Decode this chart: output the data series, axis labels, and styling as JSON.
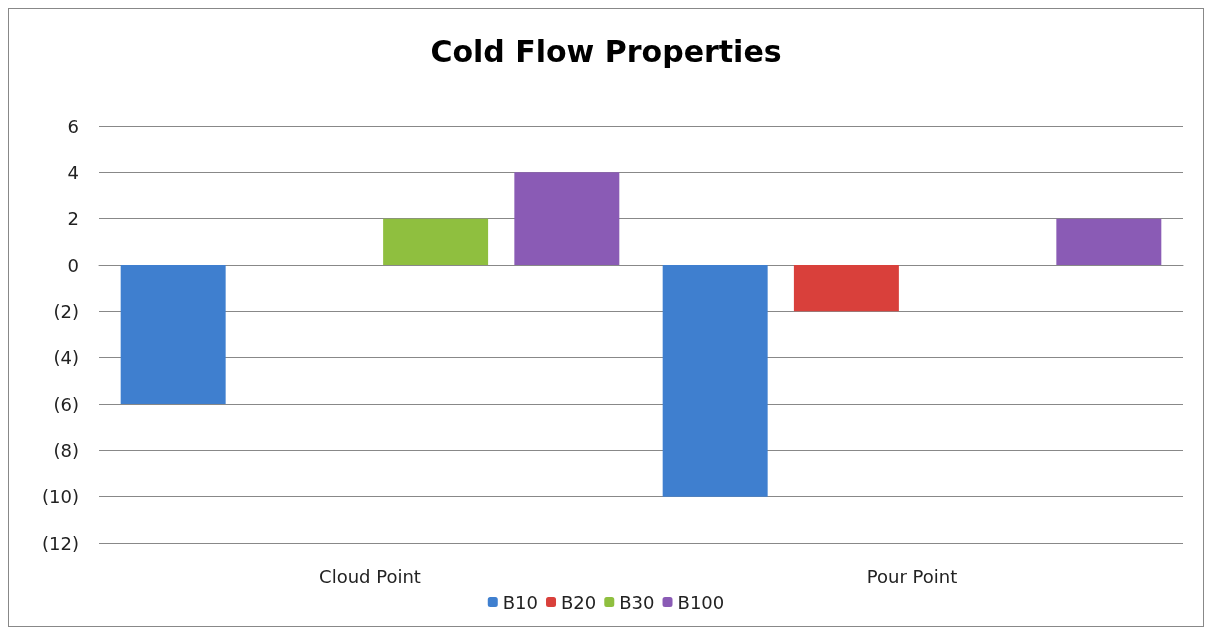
{
  "chart_data": {
    "type": "bar",
    "title": "Cold Flow Properties",
    "categories": [
      "Cloud Point",
      "Pour Point"
    ],
    "series": [
      {
        "name": "B10",
        "color": "#3f7fcf",
        "values": [
          -6,
          -10
        ]
      },
      {
        "name": "B20",
        "color": "#d9403b",
        "values": [
          0,
          -2
        ]
      },
      {
        "name": "B30",
        "color": "#8fbf3f",
        "values": [
          2,
          0
        ]
      },
      {
        "name": "B100",
        "color": "#8a5bb5",
        "values": [
          4,
          2
        ]
      }
    ],
    "ylim": [
      -12,
      6
    ],
    "yticks": [
      6,
      4,
      2,
      0,
      {
        "value": -2,
        "label": "(2)"
      },
      {
        "value": -4,
        "label": "(4)"
      },
      {
        "value": -6,
        "label": "(6)"
      },
      {
        "value": -8,
        "label": "(8)"
      },
      {
        "value": -10,
        "label": "(10)"
      },
      {
        "value": -12,
        "label": "(12)"
      }
    ],
    "grid": "y",
    "legend": "bottom"
  }
}
